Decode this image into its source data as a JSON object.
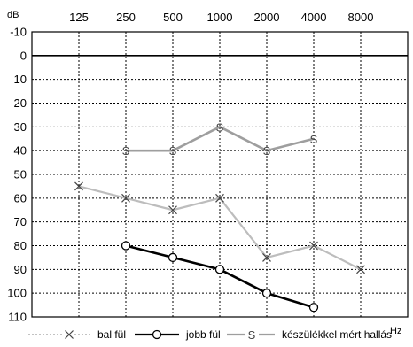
{
  "chart_data": {
    "type": "line",
    "title": "",
    "y_unit_label": "dB",
    "x_unit_label": "Hz",
    "x_categories": [
      "125",
      "250",
      "500",
      "1000",
      "2000",
      "4000",
      "8000"
    ],
    "y_ticks": [
      "-10",
      "0",
      "10",
      "20",
      "30",
      "40",
      "50",
      "60",
      "70",
      "80",
      "90",
      "100",
      "110"
    ],
    "y_range": [
      -10,
      110
    ],
    "y_inverted": true,
    "grid": true,
    "legend_position": "bottom",
    "series": [
      {
        "name": "bal fül",
        "marker": "x",
        "line_color": "#bdbdbd",
        "line_style": "dotted-in-legend",
        "points": [
          {
            "x": "125",
            "y": 55
          },
          {
            "x": "250",
            "y": 60
          },
          {
            "x": "500",
            "y": 65
          },
          {
            "x": "1000",
            "y": 60
          },
          {
            "x": "2000",
            "y": 85
          },
          {
            "x": "4000",
            "y": 80
          },
          {
            "x": "8000",
            "y": 90
          }
        ]
      },
      {
        "name": "jobb fül",
        "marker": "o",
        "line_color": "#000000",
        "points": [
          {
            "x": "250",
            "y": 80
          },
          {
            "x": "500",
            "y": 85
          },
          {
            "x": "1000",
            "y": 90
          },
          {
            "x": "2000",
            "y": 100
          },
          {
            "x": "4000",
            "y": 106
          }
        ]
      },
      {
        "name": "készülékkel mért hallás",
        "marker": "S",
        "line_color": "#9e9e9e",
        "points": [
          {
            "x": "250",
            "y": 40
          },
          {
            "x": "500",
            "y": 40
          },
          {
            "x": "1000",
            "y": 30
          },
          {
            "x": "2000",
            "y": 40
          },
          {
            "x": "4000",
            "y": 35
          }
        ]
      }
    ]
  }
}
